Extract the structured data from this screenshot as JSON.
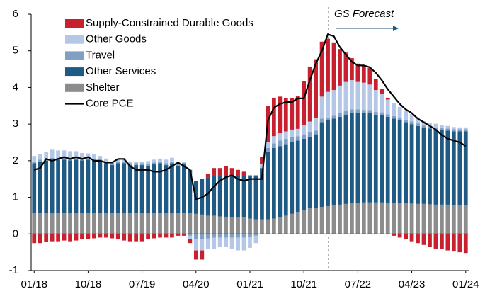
{
  "chart_data": {
    "type": "stacked-bar-line",
    "annotation": "GS Forecast",
    "categories": [
      "01/18",
      null,
      null,
      null,
      null,
      null,
      null,
      null,
      null,
      "10/18",
      null,
      null,
      null,
      null,
      null,
      null,
      null,
      null,
      "07/19",
      null,
      null,
      null,
      null,
      null,
      null,
      null,
      null,
      "04/20",
      null,
      null,
      null,
      null,
      null,
      null,
      null,
      null,
      "01/21",
      null,
      null,
      null,
      null,
      null,
      null,
      null,
      null,
      "10/21",
      null,
      null,
      null,
      null,
      null,
      null,
      null,
      null,
      "07/22",
      null,
      null,
      null,
      null,
      null,
      null,
      null,
      null,
      "04/23",
      null,
      null,
      null,
      null,
      null,
      null,
      null,
      null,
      "01/24"
    ],
    "series": [
      {
        "name": "Shelter",
        "color": "#8c8c8c",
        "values": [
          0.58,
          0.58,
          0.58,
          0.58,
          0.58,
          0.58,
          0.58,
          0.58,
          0.58,
          0.58,
          0.58,
          0.58,
          0.58,
          0.58,
          0.58,
          0.58,
          0.58,
          0.58,
          0.58,
          0.58,
          0.58,
          0.58,
          0.58,
          0.58,
          0.58,
          0.58,
          0.57,
          0.55,
          0.53,
          0.5,
          0.5,
          0.48,
          0.47,
          0.46,
          0.45,
          0.45,
          0.42,
          0.4,
          0.4,
          0.4,
          0.42,
          0.45,
          0.5,
          0.55,
          0.6,
          0.65,
          0.7,
          0.72,
          0.74,
          0.76,
          0.78,
          0.8,
          0.82,
          0.84,
          0.85,
          0.86,
          0.86,
          0.86,
          0.86,
          0.85,
          0.85,
          0.84,
          0.84,
          0.83,
          0.82,
          0.82,
          0.81,
          0.8,
          0.8,
          0.8,
          0.79,
          0.79,
          0.79
        ]
      },
      {
        "name": "Other Services",
        "color": "#1f5a85",
        "values": [
          1.35,
          1.4,
          1.42,
          1.45,
          1.45,
          1.45,
          1.43,
          1.45,
          1.43,
          1.45,
          1.42,
          1.4,
          1.35,
          1.3,
          1.35,
          1.35,
          1.3,
          1.3,
          1.3,
          1.28,
          1.32,
          1.35,
          1.3,
          1.35,
          1.27,
          1.32,
          1.18,
          0.9,
          0.97,
          1.05,
          1.1,
          1.12,
          1.13,
          1.14,
          1.15,
          1.15,
          1.18,
          1.2,
          1.4,
          1.85,
          1.93,
          1.95,
          1.95,
          1.95,
          1.95,
          1.95,
          1.95,
          2.0,
          2.31,
          2.34,
          2.37,
          2.4,
          2.43,
          2.46,
          2.45,
          2.44,
          2.44,
          2.39,
          2.39,
          2.35,
          2.3,
          2.26,
          2.21,
          2.17,
          2.13,
          2.08,
          2.07,
          2.05,
          2.03,
          2.02,
          2.01,
          2.01,
          2.01
        ]
      },
      {
        "name": "Travel",
        "color": "#7f9fc3",
        "values": [
          0.05,
          0.05,
          0.05,
          0.05,
          0.05,
          0.05,
          0.05,
          0.05,
          0.05,
          0.05,
          0.05,
          0.05,
          0.05,
          0.05,
          0.05,
          0.05,
          0.05,
          0.05,
          0.05,
          0.05,
          0.05,
          0.05,
          0.05,
          0.05,
          0.05,
          0.05,
          -0.05,
          -0.15,
          -0.15,
          -0.12,
          -0.1,
          -0.1,
          -0.1,
          -0.1,
          -0.1,
          -0.1,
          -0.08,
          -0.05,
          0.0,
          0.1,
          0.12,
          0.15,
          0.15,
          0.15,
          0.12,
          0.12,
          0.12,
          0.1,
          0.1,
          0.08,
          0.08,
          0.1,
          0.1,
          0.1,
          0.1,
          0.08,
          0.08,
          0.08,
          0.07,
          0.07,
          0.07,
          0.07,
          0.07,
          0.07,
          0.07,
          0.06,
          0.06,
          0.06,
          0.06,
          0.06,
          0.06,
          0.06,
          0.06
        ]
      },
      {
        "name": "Other Goods",
        "color": "#b4c7e7",
        "values": [
          0.15,
          0.15,
          0.2,
          0.22,
          0.2,
          0.2,
          0.2,
          0.18,
          0.15,
          0.12,
          0.12,
          0.1,
          0.08,
          0.05,
          0.05,
          0.05,
          0.05,
          0.05,
          0.05,
          0.08,
          0.08,
          0.08,
          0.1,
          0.1,
          0.05,
          0.0,
          -0.1,
          -0.3,
          -0.3,
          -0.3,
          -0.3,
          -0.25,
          -0.25,
          -0.3,
          -0.35,
          -0.35,
          -0.3,
          -0.2,
          0.1,
          0.15,
          0.2,
          0.2,
          0.2,
          0.2,
          0.2,
          0.25,
          0.3,
          0.35,
          0.6,
          0.7,
          0.7,
          0.75,
          0.8,
          0.8,
          0.75,
          0.75,
          0.7,
          0.6,
          0.5,
          0.4,
          0.35,
          0.3,
          0.25,
          0.2,
          0.15,
          0.12,
          0.1,
          0.1,
          0.08,
          0.07,
          0.06,
          0.05,
          0.05
        ]
      },
      {
        "name": "Supply-Constrained Durable Goods",
        "color": "#c8202f",
        "values": [
          -0.25,
          -0.25,
          -0.22,
          -0.2,
          -0.2,
          -0.18,
          -0.2,
          -0.18,
          -0.15,
          -0.15,
          -0.12,
          -0.1,
          -0.1,
          -0.12,
          -0.15,
          -0.18,
          -0.2,
          -0.2,
          -0.2,
          -0.15,
          -0.12,
          -0.1,
          -0.1,
          -0.1,
          -0.05,
          -0.05,
          -0.1,
          -0.25,
          -0.25,
          0.1,
          0.2,
          0.2,
          0.25,
          0.2,
          0.15,
          0.1,
          0.0,
          0.0,
          0.2,
          1.0,
          1.05,
          1.0,
          0.9,
          0.85,
          0.9,
          1.2,
          1.5,
          1.6,
          1.5,
          1.45,
          1.3,
          1.0,
          0.8,
          0.6,
          0.5,
          0.45,
          0.45,
          0.3,
          0.15,
          0.05,
          -0.05,
          -0.1,
          -0.15,
          -0.2,
          -0.25,
          -0.3,
          -0.35,
          -0.4,
          -0.42,
          -0.45,
          -0.48,
          -0.5,
          -0.52
        ]
      }
    ],
    "line": {
      "name": "Core PCE",
      "color": "#000000",
      "values": [
        1.75,
        1.8,
        2.05,
        2.0,
        2.05,
        2.1,
        2.05,
        2.1,
        2.05,
        2.1,
        2.0,
        2.0,
        1.95,
        1.95,
        2.05,
        2.05,
        1.85,
        1.75,
        1.75,
        1.75,
        1.7,
        1.7,
        1.75,
        1.85,
        1.95,
        1.85,
        1.75,
        0.95,
        1.0,
        1.1,
        1.3,
        1.45,
        1.55,
        1.6,
        1.5,
        1.45,
        1.5,
        1.5,
        1.5,
        3.1,
        3.45,
        3.55,
        3.6,
        3.6,
        3.7,
        3.7,
        4.2,
        4.65,
        5.0,
        5.45,
        5.4,
        5.1,
        4.9,
        4.7,
        4.6,
        4.6,
        4.55,
        4.4,
        4.2,
        3.95,
        3.75,
        3.55,
        3.4,
        3.3,
        3.15,
        3.05,
        2.95,
        2.85,
        2.7,
        2.6,
        2.55,
        2.5,
        2.4
      ]
    },
    "ylim": [
      -1,
      6
    ],
    "yticks": [
      -1,
      0,
      1,
      2,
      3,
      4,
      5,
      6
    ],
    "legend": "upper left"
  }
}
